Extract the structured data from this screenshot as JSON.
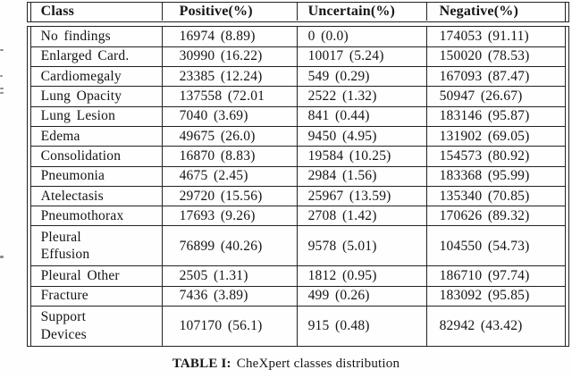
{
  "table": {
    "headers": {
      "class": "Class",
      "positive": "Positive(%)",
      "uncertain": "Uncertain(%)",
      "negative": "Negative(%)"
    },
    "rows": [
      {
        "class": "No findings",
        "positive": "16974 (8.89)",
        "uncertain": "0 (0.0)",
        "negative": "174053 (91.11)"
      },
      {
        "class": "Enlarged Card.",
        "positive": "30990 (16.22)",
        "uncertain": "10017 (5.24)",
        "negative": "150020 (78.53)"
      },
      {
        "class": "Cardiomegaly",
        "positive": "23385 (12.24)",
        "uncertain": "549 (0.29)",
        "negative": "167093 (87.47)"
      },
      {
        "class": "Lung Opacity",
        "positive": "137558 (72.01",
        "uncertain": "2522 (1.32)",
        "negative": "50947 (26.67)"
      },
      {
        "class": "Lung Lesion",
        "positive": "7040 (3.69)",
        "uncertain": "841 (0.44)",
        "negative": "183146 (95.87)"
      },
      {
        "class": "Edema",
        "positive": "49675 (26.0)",
        "uncertain": "9450 (4.95)",
        "negative": "131902 (69.05)"
      },
      {
        "class": "Consolidation",
        "positive": "16870 (8.83)",
        "uncertain": "19584 (10.25)",
        "negative": "154573 (80.92)"
      },
      {
        "class": "Pneumonia",
        "positive": "4675 (2.45)",
        "uncertain": "2984 (1.56)",
        "negative": "183368 (95.99)"
      },
      {
        "class": "Atelectasis",
        "positive": "29720 (15.56)",
        "uncertain": "25967 (13.59)",
        "negative": "135340 (70.85)"
      },
      {
        "class": "Pneumothorax",
        "positive": "17693 (9.26)",
        "uncertain": "2708 (1.42)",
        "negative": "170626 (89.32)"
      },
      {
        "class": "Pleural\nEffusion",
        "positive": "76899 (40.26)",
        "uncertain": "9578 (5.01)",
        "negative": "104550 (54.73)"
      },
      {
        "class": "Pleural Other",
        "positive": "2505 (1.31)",
        "uncertain": "1812 (0.95)",
        "negative": "186710 (97.74)"
      },
      {
        "class": "Fracture",
        "positive": "7436 (3.89)",
        "uncertain": "499 (0.26)",
        "negative": "183092 (95.85)"
      },
      {
        "class": "Support\nDevices",
        "positive": "107170 (56.1)",
        "uncertain": "915 (0.48)",
        "negative": "82942 (43.42)"
      }
    ]
  },
  "caption": {
    "label": "TABLE I:",
    "text": "CheXpert classes distribution"
  },
  "colors": {
    "border": "#222222",
    "text": "#141414",
    "background": "#fefefe"
  }
}
